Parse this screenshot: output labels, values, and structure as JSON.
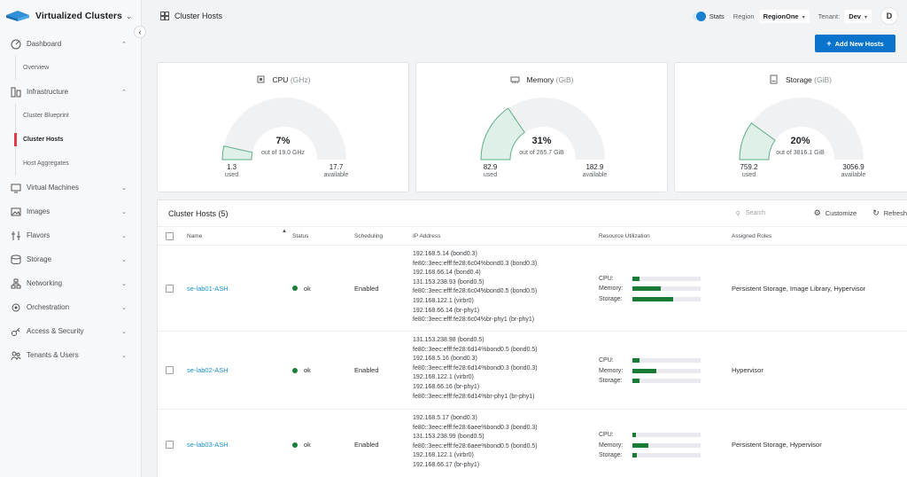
{
  "app": {
    "title": "Virtualized Clusters"
  },
  "sidebar": {
    "items": [
      {
        "label": "Dashboard",
        "icon": "dashboard-icon",
        "expanded": true,
        "children": [
          "Overview"
        ]
      },
      {
        "label": "Infrastructure",
        "icon": "infrastructure-icon",
        "expanded": true,
        "children": [
          "Cluster Blueprint",
          "Cluster Hosts",
          "Host Aggregates"
        ],
        "active_child": "Cluster Hosts"
      },
      {
        "label": "Virtual Machines",
        "icon": "monitor-icon"
      },
      {
        "label": "Images",
        "icon": "image-icon"
      },
      {
        "label": "Flavors",
        "icon": "flavors-icon"
      },
      {
        "label": "Storage",
        "icon": "storage-icon"
      },
      {
        "label": "Networking",
        "icon": "network-icon"
      },
      {
        "label": "Orchestration",
        "icon": "orchestration-icon"
      },
      {
        "label": "Access & Security",
        "icon": "key-icon"
      },
      {
        "label": "Tenants & Users",
        "icon": "users-icon"
      }
    ]
  },
  "header": {
    "page_title": "Cluster Hosts",
    "stats_label": "Stats",
    "stats_on": true,
    "region_label": "Region",
    "region_value": "RegionOne",
    "tenant_label": "Tenant:",
    "tenant_value": "Dev",
    "avatar_initial": "D"
  },
  "actions": {
    "add_hosts_label": "Add New Hosts"
  },
  "gauges": [
    {
      "name": "CPU",
      "unit": "(GHz)",
      "percent_label": "7%",
      "percent": 7,
      "subtitle": "out of 19.0 GHz",
      "used": "1.3",
      "used_label": "used",
      "available": "17.7",
      "available_label": "available",
      "icon": "cpu-icon"
    },
    {
      "name": "Memory",
      "unit": "(GiB)",
      "percent_label": "31%",
      "percent": 31,
      "subtitle": "out of 265.7 GiB",
      "used": "82.9",
      "used_label": "used",
      "available": "182.9",
      "available_label": "available",
      "icon": "memory-icon"
    },
    {
      "name": "Storage",
      "unit": "(GiB)",
      "percent_label": "20%",
      "percent": 20,
      "subtitle": "out of 3816.1 GiB",
      "used": "759.2",
      "used_label": "used",
      "available": "3056.9",
      "available_label": "available",
      "icon": "storage-icon"
    }
  ],
  "table": {
    "title": "Cluster Hosts (5)",
    "search_placeholder": "Search",
    "customize_label": "Customize",
    "refresh_label": "Refresh",
    "columns": [
      "Name",
      "Status",
      "Scheduling",
      "IP Address",
      "Resource Utilization",
      "Assigned Roles"
    ],
    "util_labels": [
      "CPU:",
      "Memory:",
      "Storage:"
    ],
    "rows": [
      {
        "name": "se-lab01-ASH",
        "status": "ok",
        "scheduling": "Enabled",
        "ips": [
          "192.168.5.14 (bond0.3)",
          "fe80::3eec:efff:fe28:6c04%bond0.3 (bond0.3)",
          "192.168.66.14 (bond0.4)",
          "131.153.238.93 (bond0.5)",
          "fe80::3eec:efff:fe28:6c04%bond0.5 (bond0.5)",
          "192.168.122.1 (virbr0)",
          "192.168.66.14 (br-phy1)",
          "fe80::3eec:efff:fe28:6c04%br-phy1 (br-phy1)"
        ],
        "util": [
          0.1,
          0.42,
          0.6
        ],
        "roles": "Persistent Storage, Image Library, Hypervisor"
      },
      {
        "name": "se-lab02-ASH",
        "status": "ok",
        "scheduling": "Enabled",
        "ips": [
          "131.153.238.98 (bond0.5)",
          "fe80::3eec:efff:fe28:6d14%bond0.5 (bond0.5)",
          "192.168.5.16 (bond0.3)",
          "fe80::3eec:efff:fe28:6d14%bond0.3 (bond0.3)",
          "192.168.122.1 (virbr0)",
          "192.168.66.16 (br-phy1)",
          "fe80::3eec:efff:fe28:6d14%br-phy1 (br-phy1)"
        ],
        "util": [
          0.1,
          0.35,
          0.1
        ],
        "roles": "Hypervisor"
      },
      {
        "name": "se-lab03-ASH",
        "status": "ok",
        "scheduling": "Enabled",
        "ips": [
          "192.168.5.17 (bond0.3)",
          "fe80::3eec:efff:fe28:6aee%bond0.3 (bond0.3)",
          "131.153.238.99 (bond0.5)",
          "fe80::3eec:efff:fe28:6aee%bond0.5 (bond0.5)",
          "192.168.122.1 (virbr0)",
          "192.168.66.17 (br-phy1)"
        ],
        "util": [
          0.05,
          0.23,
          0.06
        ],
        "roles": "Persistent Storage, Hypervisor"
      }
    ]
  },
  "colors": {
    "accent": "#0a74cc",
    "link": "#1a8fcf",
    "ok": "#1b7f3a",
    "bar": "#187a35",
    "gauge_fill": "#dff0e8",
    "gauge_stroke": "#5fae86",
    "gauge_track": "#f0f1f3",
    "active_marker": "#e2394d"
  }
}
